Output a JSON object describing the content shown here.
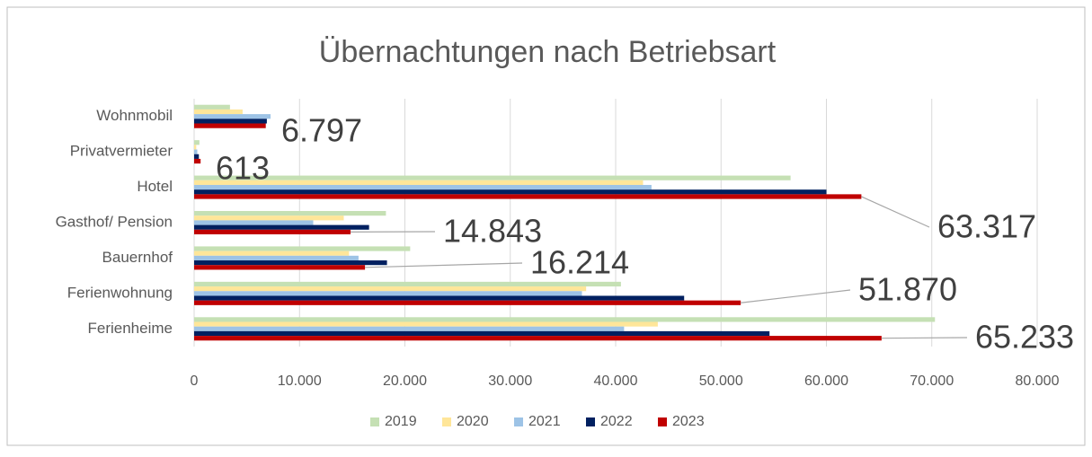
{
  "chart_data": {
    "type": "hbar",
    "title": "Übernachtungen nach Betriebsart",
    "categories": [
      "Ferienheime",
      "Ferienwohnung",
      "Bauernhof",
      "Gasthof/ Pension",
      "Hotel",
      "Privatvermieter",
      "Wohnmobil"
    ],
    "series": [
      {
        "name": "2019",
        "color": "#c5e0b4",
        "values": [
          70300,
          40500,
          20500,
          18200,
          56600,
          500,
          3400
        ]
      },
      {
        "name": "2020",
        "color": "#ffe699",
        "values": [
          44000,
          37200,
          14700,
          14200,
          42600,
          200,
          4600
        ]
      },
      {
        "name": "2021",
        "color": "#9dc3e6",
        "values": [
          40800,
          36800,
          15600,
          11300,
          43400,
          300,
          7250
        ]
      },
      {
        "name": "2022",
        "color": "#002060",
        "values": [
          54600,
          46500,
          18300,
          16600,
          60000,
          450,
          6900
        ]
      },
      {
        "name": "2023",
        "color": "#c00000",
        "values": [
          65233,
          51870,
          16214,
          14843,
          63317,
          613,
          6797
        ],
        "value_labels": [
          "65.233",
          "51.870",
          "16.214",
          "14.843",
          "63.317",
          "613",
          "6.797"
        ]
      }
    ],
    "xlim": [
      0,
      80000
    ],
    "xticks": [
      0,
      {
        "value": 10000,
        "label": "10.000"
      },
      {
        "value": 20000,
        "label": "20.000"
      },
      {
        "value": 30000,
        "label": "30.000"
      },
      {
        "value": 40000,
        "label": "40.000"
      },
      {
        "value": 50000,
        "label": "50.000"
      },
      {
        "value": 60000,
        "label": "60.000"
      },
      {
        "value": 70000,
        "label": "70.000"
      },
      {
        "value": 80000,
        "label": "80.000"
      }
    ],
    "grid": true,
    "legend": "bottom"
  }
}
